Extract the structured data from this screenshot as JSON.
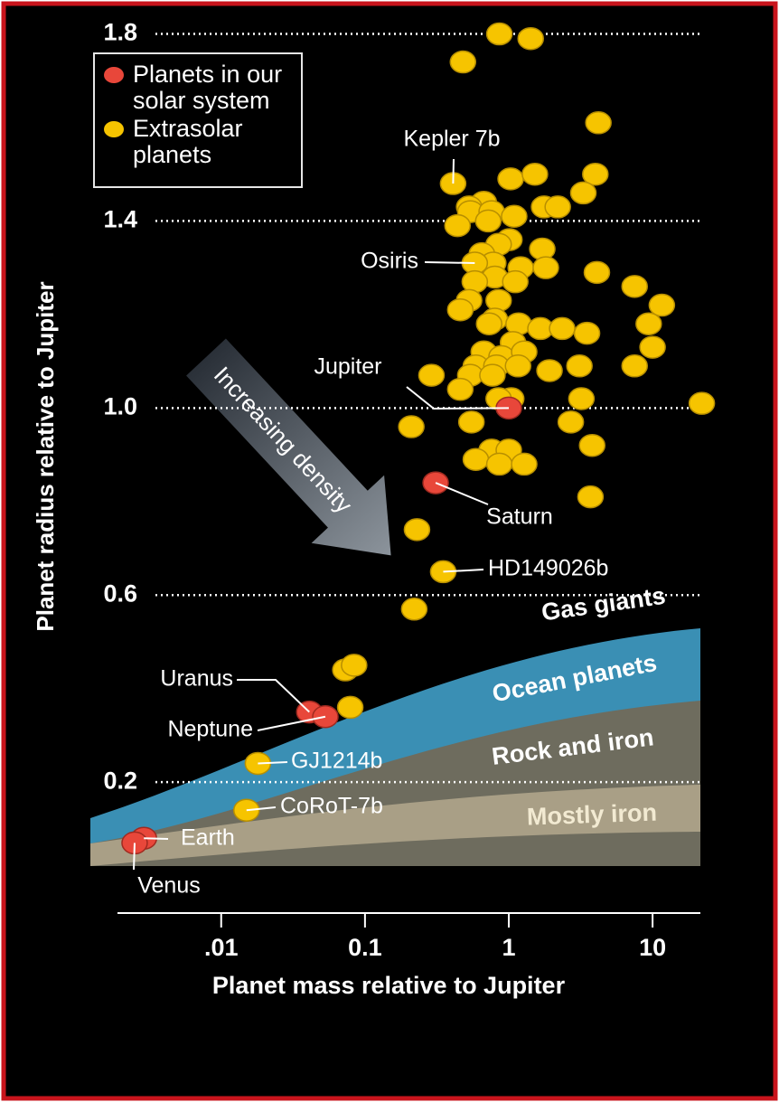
{
  "chart_data": {
    "type": "scatter",
    "x_label": "Planet mass relative to Jupiter",
    "y_label": "Planet radius relative to Jupiter",
    "xlog": true,
    "xlim": [
      0.0019,
      21.5
    ],
    "xticks": [
      {
        "value": 0.01,
        "label": ".01"
      },
      0.1,
      1,
      10
    ],
    "ylim": [
      -0.08,
      1.83
    ],
    "yticks": [
      0.2,
      0.6,
      {
        "value": 1,
        "label": "1.0"
      },
      1.4,
      1.8
    ],
    "grid": true,
    "legend": "upper left",
    "annotations": [
      "Increasing density",
      "Gas giants",
      "Ocean planets",
      "Rock and iron",
      "Mostly iron"
    ],
    "series": [
      {
        "name": "Planets in our solar system",
        "color": "#e8473a",
        "x": [
          1,
          0.31,
          0.041,
          0.053,
          0.0029,
          0.0025
        ],
        "values": [
          1.0,
          0.84,
          0.35,
          0.34,
          0.08,
          0.07
        ],
        "labels": [
          "Jupiter",
          "Saturn",
          "Uranus",
          "Neptune",
          "Earth",
          "Venus"
        ]
      },
      {
        "name": "Extrasolar planets",
        "color": "#f6c400",
        "x": [
          0.86,
          1.42,
          0.48,
          4.2,
          0.41,
          1.03,
          1.52,
          4.0,
          3.3,
          0.67,
          0.53,
          0.54,
          0.76,
          1.09,
          1.76,
          2.19,
          0.44,
          0.72,
          1.01,
          0.85,
          0.65,
          1.71,
          0.78,
          0.58,
          1.21,
          1.81,
          4.1,
          0.8,
          0.58,
          1.11,
          7.5,
          11.6,
          0.53,
          0.85,
          0.46,
          0.8,
          1.17,
          0.73,
          1.66,
          2.35,
          3.5,
          9.4,
          10,
          1.07,
          0.67,
          0.89,
          1.28,
          0.59,
          0.82,
          1.16,
          1.92,
          3.1,
          7.5,
          0.29,
          0.54,
          0.46,
          0.77,
          1.04,
          3.2,
          22,
          0.85,
          0.21,
          0.55,
          2.7,
          0.76,
          1.0,
          3.8,
          0.59,
          0.86,
          1.28,
          3.7,
          0.23,
          0.35,
          0.22,
          0.073,
          0.084,
          0.079,
          0.018,
          0.015
        ],
        "values": [
          1.8,
          1.79,
          1.74,
          1.61,
          1.48,
          1.49,
          1.5,
          1.5,
          1.46,
          1.44,
          1.43,
          1.42,
          1.42,
          1.41,
          1.43,
          1.43,
          1.39,
          1.4,
          1.36,
          1.35,
          1.33,
          1.34,
          1.31,
          1.31,
          1.3,
          1.3,
          1.29,
          1.28,
          1.27,
          1.27,
          1.26,
          1.22,
          1.23,
          1.23,
          1.21,
          1.19,
          1.18,
          1.18,
          1.17,
          1.17,
          1.16,
          1.18,
          1.13,
          1.14,
          1.12,
          1.11,
          1.12,
          1.09,
          1.09,
          1.09,
          1.08,
          1.09,
          1.09,
          1.07,
          1.07,
          1.04,
          1.07,
          1.02,
          1.02,
          1.01,
          1.02,
          0.96,
          0.97,
          0.97,
          0.91,
          0.91,
          0.92,
          0.89,
          0.88,
          0.88,
          0.81,
          0.74,
          0.65,
          0.57,
          0.44,
          0.45,
          0.36,
          0.24,
          0.14
        ],
        "labels": [
          null,
          null,
          null,
          null,
          "Kepler 7b",
          null,
          null,
          null,
          null,
          null,
          null,
          null,
          null,
          null,
          null,
          null,
          null,
          null,
          null,
          null,
          null,
          null,
          null,
          "Osiris",
          null,
          null,
          null,
          null,
          null,
          null,
          null,
          null,
          null,
          null,
          null,
          null,
          null,
          null,
          null,
          null,
          null,
          null,
          null,
          null,
          null,
          null,
          null,
          null,
          null,
          null,
          null,
          null,
          null,
          null,
          null,
          null,
          null,
          null,
          null,
          null,
          null,
          null,
          null,
          null,
          null,
          null,
          null,
          null,
          null,
          null,
          null,
          null,
          "HD149026b",
          null,
          null,
          null,
          null,
          "GJ1214b",
          "CoRoT-7b"
        ]
      }
    ]
  }
}
